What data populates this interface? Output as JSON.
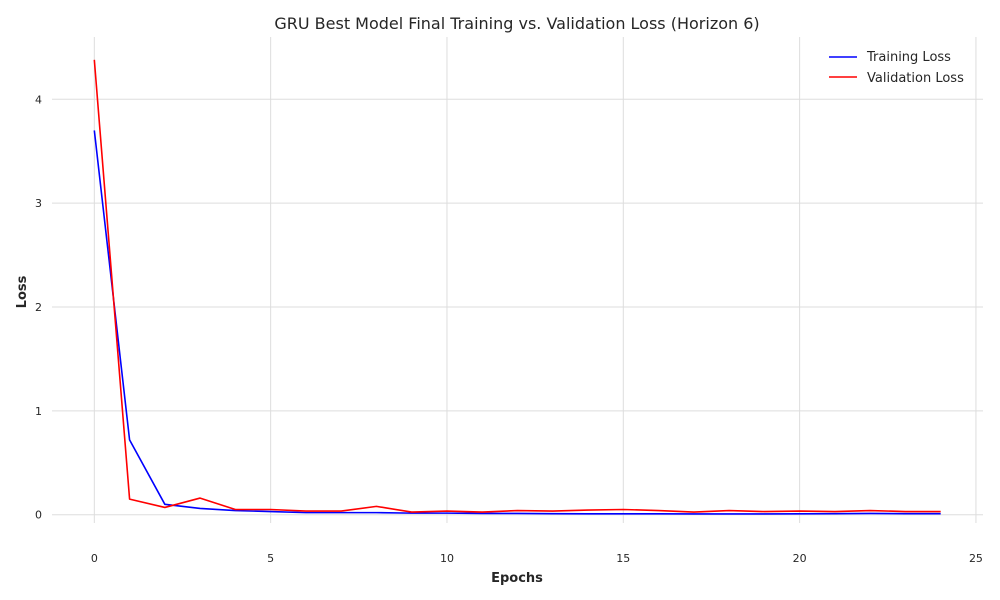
{
  "chart_data": {
    "type": "line",
    "title": "GRU Best Model Final Training vs. Validation Loss (Horizon 6)",
    "xlabel": "Epochs",
    "ylabel": "Loss",
    "xlim": [
      -1.2,
      25.2
    ],
    "ylim": [
      -0.08,
      4.6
    ],
    "xticks": [
      0,
      5,
      10,
      15,
      20,
      25
    ],
    "yticks": [
      0,
      1,
      2,
      3,
      4
    ],
    "grid": true,
    "legend_position": "top-right",
    "x": [
      0,
      1,
      2,
      3,
      4,
      5,
      6,
      7,
      8,
      9,
      10,
      11,
      12,
      13,
      14,
      15,
      16,
      17,
      18,
      19,
      20,
      21,
      22,
      23,
      24
    ],
    "series": [
      {
        "name": "Training Loss",
        "color": "#0000ff",
        "values": [
          3.7,
          0.72,
          0.1,
          0.06,
          0.04,
          0.03,
          0.02,
          0.02,
          0.02,
          0.015,
          0.015,
          0.012,
          0.012,
          0.01,
          0.008,
          0.008,
          0.008,
          0.007,
          0.007,
          0.007,
          0.008,
          0.01,
          0.012,
          0.01,
          0.01
        ]
      },
      {
        "name": "Validation Loss",
        "color": "#ff0000",
        "values": [
          4.38,
          0.15,
          0.07,
          0.16,
          0.05,
          0.05,
          0.035,
          0.035,
          0.08,
          0.025,
          0.035,
          0.025,
          0.04,
          0.035,
          0.045,
          0.05,
          0.04,
          0.025,
          0.04,
          0.03,
          0.035,
          0.03,
          0.04,
          0.03,
          0.03
        ]
      }
    ]
  }
}
